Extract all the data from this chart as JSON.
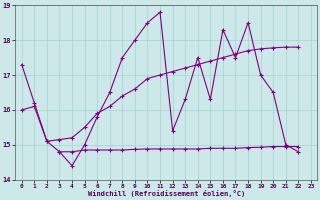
{
  "xlabel": "Windchill (Refroidissement éolien,°C)",
  "bg_color": "#cce8e8",
  "line_color": "#800080",
  "xlim": [
    -0.5,
    23.5
  ],
  "ylim": [
    14,
    19
  ],
  "yticks": [
    14,
    15,
    16,
    17,
    18,
    19
  ],
  "xticks": [
    0,
    1,
    2,
    3,
    4,
    5,
    6,
    7,
    8,
    9,
    10,
    11,
    12,
    13,
    14,
    15,
    16,
    17,
    18,
    19,
    20,
    21,
    22,
    23
  ],
  "series1_y": [
    17.3,
    16.2,
    15.1,
    14.8,
    14.4,
    15.0,
    15.8,
    16.5,
    17.5,
    18.0,
    18.5,
    18.8,
    15.4,
    16.3,
    17.5,
    16.3,
    18.3,
    17.5,
    18.5,
    17.0,
    16.5,
    15.0,
    14.8,
    null
  ],
  "series2_y": [
    null,
    null,
    null,
    14.8,
    14.8,
    14.85,
    14.85,
    14.85,
    14.85,
    14.87,
    14.88,
    14.88,
    14.88,
    14.88,
    14.88,
    14.9,
    14.9,
    14.9,
    14.92,
    14.93,
    14.95,
    14.95,
    14.95,
    null
  ],
  "series3_y": [
    16.0,
    16.1,
    15.1,
    15.15,
    15.2,
    15.5,
    15.9,
    16.1,
    16.4,
    16.6,
    16.9,
    17.0,
    17.1,
    17.2,
    17.3,
    17.4,
    17.5,
    17.6,
    17.7,
    17.75,
    17.78,
    17.8,
    17.8,
    null
  ]
}
